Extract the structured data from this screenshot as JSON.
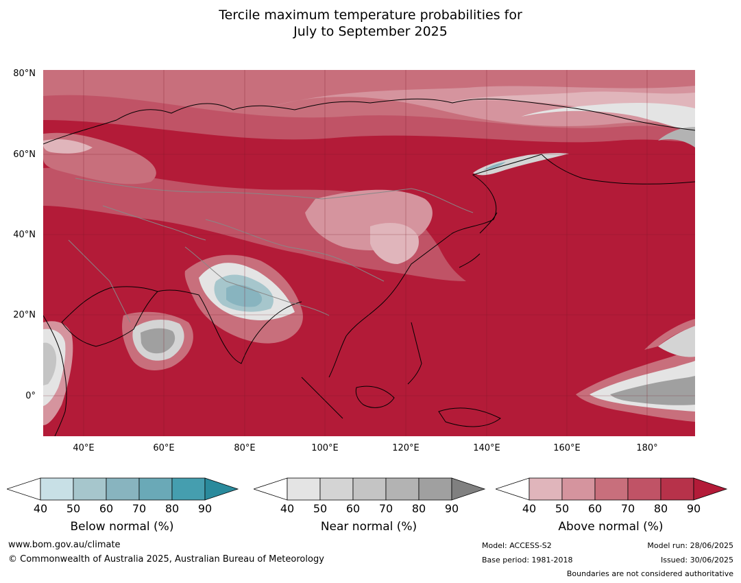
{
  "title": {
    "line1": "Tercile maximum temperature probabilities for",
    "line2": "July to September 2025"
  },
  "map": {
    "lat_labels": [
      "80°N",
      "60°N",
      "40°N",
      "20°N",
      "0°"
    ],
    "lon_labels": [
      "40°E",
      "60°E",
      "80°E",
      "100°E",
      "120°E",
      "140°E",
      "160°E",
      "180°"
    ],
    "dominant_category": "above-normal",
    "colors": {
      "ocean_base": "#b31b38",
      "coast_line": "#000000",
      "border_line": "#888888"
    }
  },
  "colorbars": [
    {
      "label": "Below normal (%)",
      "ticks": [
        "40",
        "50",
        "60",
        "70",
        "80",
        "90"
      ],
      "colors": [
        "#ffffff",
        "#c8e0e6",
        "#a6c6cc",
        "#88b4bf",
        "#6aa9b7",
        "#459eaf",
        "#2a8a9c"
      ]
    },
    {
      "label": "Near normal (%)",
      "ticks": [
        "40",
        "50",
        "60",
        "70",
        "80",
        "90"
      ],
      "colors": [
        "#ffffff",
        "#e4e4e4",
        "#d4d4d4",
        "#c4c4c4",
        "#b3b3b3",
        "#a0a0a0",
        "#808080"
      ]
    },
    {
      "label": "Above normal (%)",
      "ticks": [
        "40",
        "50",
        "60",
        "70",
        "80",
        "90"
      ],
      "colors": [
        "#ffffff",
        "#e0b5bb",
        "#d5949e",
        "#c86f7c",
        "#c05366",
        "#b7324a",
        "#b31b38"
      ]
    }
  ],
  "footer": {
    "website": "www.bom.gov.au/climate",
    "copyright": "© Commonwealth of Australia 2025, Australian Bureau of Meteorology",
    "model": "Model: ACCESS-S2",
    "base_period": "Base period: 1981-2018",
    "model_run": "Model run: 28/06/2025",
    "issued": "Issued: 30/06/2025",
    "disclaimer": "Boundaries are not considered authoritative"
  }
}
